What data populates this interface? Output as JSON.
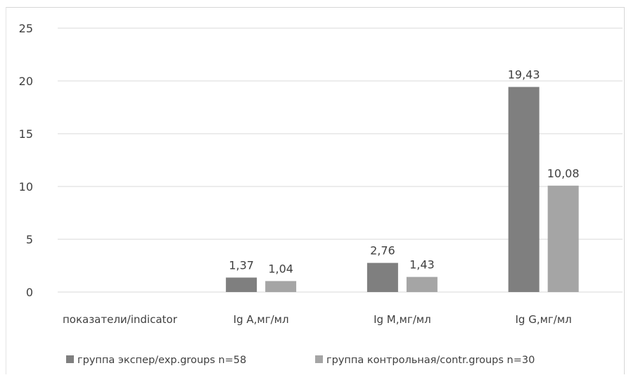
{
  "chart_data": {
    "type": "bar",
    "title": "",
    "xlabel": "",
    "ylabel": "",
    "ylim": [
      0,
      25
    ],
    "yticks": [
      "0",
      "5",
      "10",
      "15",
      "20",
      "25"
    ],
    "ytick_values": [
      0,
      5,
      10,
      15,
      20,
      25
    ],
    "grid": true,
    "legend_position": "bottom",
    "categories": [
      "показатели/indicator",
      "Ig A,мг/мл",
      "Ig M,мг/мл",
      "Ig G,мг/мл"
    ],
    "series": [
      {
        "name": "группа экспер/exp.groups n=58",
        "color": "#7f7f7f",
        "values": [
          null,
          1.37,
          2.76,
          19.43
        ],
        "labels": [
          "",
          "1,37",
          "2,76",
          "19,43"
        ]
      },
      {
        "name": "группа контрольная/contr.groups n=30",
        "color": "#a5a5a5",
        "values": [
          null,
          1.04,
          1.43,
          10.08
        ],
        "labels": [
          "",
          "1,04",
          "1,43",
          "10,08"
        ]
      }
    ]
  }
}
